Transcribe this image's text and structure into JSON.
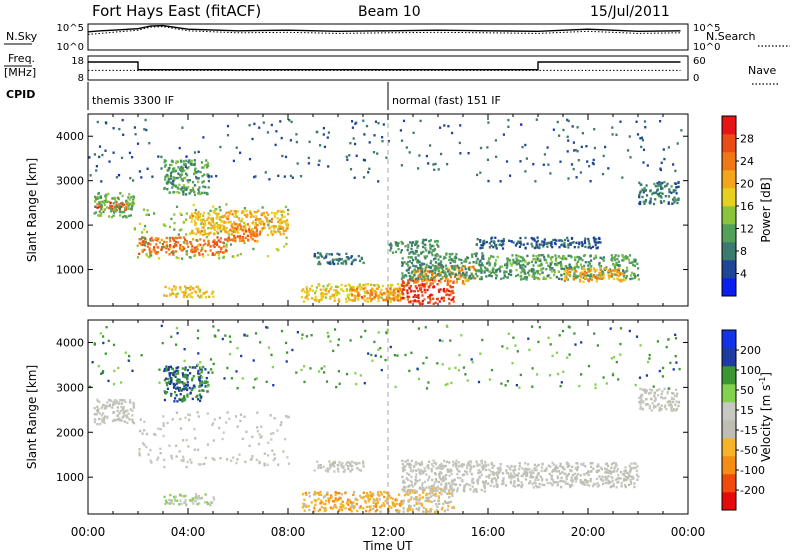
{
  "header": {
    "station": "Fort Hays East (fitACF)",
    "beam": "Beam 10",
    "date": "15/Jul/2011"
  },
  "strip_labels": {
    "nsky": "N.Sky",
    "nsearch": "N.Search",
    "freq_line1": "Freq.",
    "freq_line2": "[MHz]",
    "nave": "Nave",
    "cpid": "CPID",
    "nsky_ticks": [
      "10^5",
      "10^0"
    ],
    "nsearch_ticks": [
      "10^5",
      "10^0"
    ],
    "freq_ticks": [
      "18",
      "8"
    ],
    "nave_ticks": [
      "60",
      "0"
    ]
  },
  "cpid_segments": [
    {
      "start_hour": 0,
      "label": "themis 3300 IF"
    },
    {
      "start_hour": 12,
      "label": "normal (fast) 151 IF"
    }
  ],
  "colors": {
    "power_scale": [
      "#0a1ef0",
      "#1e4696",
      "#3c7a6e",
      "#52a05a",
      "#8ac33c",
      "#e6d21e",
      "#f5a519",
      "#f07814",
      "#eb4b14",
      "#e61414"
    ],
    "velocity_scale": [
      "#e60a0a",
      "#f04b0a",
      "#f58c14",
      "#f5b428",
      "#bebeb4",
      "#c8c8c3",
      "#82d250",
      "#3c9632",
      "#1e3ca0",
      "#1432e6"
    ]
  },
  "chart_data": [
    {
      "type": "line",
      "name": "strip-noise",
      "ylim": [
        0,
        5
      ],
      "x": [
        0,
        0.5,
        1,
        2,
        2.5,
        3,
        4,
        6,
        8,
        10,
        12,
        14,
        16,
        18,
        20,
        22,
        23.7
      ],
      "series": [
        {
          "name": "N.Sky",
          "values": [
            3.5,
            3.7,
            3.8,
            4.1,
            4.6,
            4.7,
            4.0,
            3.7,
            3.8,
            3.6,
            3.7,
            3.8,
            3.7,
            3.6,
            4.0,
            3.6,
            3.7
          ]
        },
        {
          "name": "N.Search",
          "values": [
            3.0,
            3.2,
            3.4,
            3.8,
            4.4,
            4.5,
            3.7,
            3.3,
            3.4,
            3.2,
            3.3,
            3.4,
            3.3,
            3.2,
            3.6,
            3.2,
            3.3
          ]
        }
      ]
    },
    {
      "type": "line",
      "name": "strip-freq",
      "ylim": [
        8,
        18
      ],
      "x": [
        0,
        2,
        2,
        18,
        18,
        23.7
      ],
      "series": [
        {
          "name": "Freq.",
          "values": [
            15.5,
            15.5,
            12.3,
            12.3,
            15.5,
            15.5
          ]
        },
        {
          "name": "Nave",
          "values": [
            12,
            12,
            12,
            12,
            12,
            12
          ]
        }
      ]
    },
    {
      "type": "heatmap",
      "name": "power-panel",
      "ylabel": "Slant Range [km]",
      "xlabel": "Time UT",
      "xlim": [
        0,
        24
      ],
      "ylim": [
        180,
        4500
      ],
      "yticks": [
        1000,
        2000,
        3000,
        4000
      ],
      "xticks": [
        "00:00",
        "04:00",
        "08:00",
        "12:00",
        "16:00",
        "20:00",
        "00:00"
      ],
      "colorbar": {
        "label": "Power [dB]",
        "min": 0,
        "max": 32,
        "ticks": [
          4,
          8,
          12,
          16,
          20,
          24,
          28
        ]
      },
      "regions": [
        {
          "t": [
            0.3,
            1.6
          ],
          "r": [
            2350,
            2550
          ],
          "v": 27
        },
        {
          "t": [
            0.2,
            1.8
          ],
          "r": [
            2200,
            2750
          ],
          "v": 12
        },
        {
          "t": [
            2.0,
            5.5
          ],
          "r": [
            1350,
            1750
          ],
          "v": 25
        },
        {
          "t": [
            1.8,
            8.0
          ],
          "r": [
            1250,
            2500
          ],
          "v": 14
        },
        {
          "t": [
            4.0,
            8.0
          ],
          "r": [
            1800,
            2350
          ],
          "v": 20
        },
        {
          "t": [
            3.0,
            4.8
          ],
          "r": [
            2700,
            3500
          ],
          "v": 11
        },
        {
          "t": [
            5.5,
            7.0
          ],
          "r": [
            1650,
            2050
          ],
          "v": 24
        },
        {
          "t": [
            3.0,
            5.0
          ],
          "r": [
            400,
            650
          ],
          "v": 18
        },
        {
          "t": [
            8.5,
            12.5
          ],
          "r": [
            300,
            700
          ],
          "v": 18
        },
        {
          "t": [
            10.5,
            12.5
          ],
          "r": [
            330,
            600
          ],
          "v": 23
        },
        {
          "t": [
            12.5,
            14.6
          ],
          "r": [
            250,
            800
          ],
          "v": 28
        },
        {
          "t": [
            13.0,
            15.5
          ],
          "r": [
            700,
            1100
          ],
          "v": 22
        },
        {
          "t": [
            12.5,
            16.0
          ],
          "r": [
            800,
            1400
          ],
          "v": 10
        },
        {
          "t": [
            16.0,
            22.0
          ],
          "r": [
            800,
            1350
          ],
          "v": 11
        },
        {
          "t": [
            19.0,
            21.5
          ],
          "r": [
            750,
            1050
          ],
          "v": 21
        },
        {
          "t": [
            15.5,
            20.5
          ],
          "r": [
            1500,
            1750
          ],
          "v": 6
        },
        {
          "t": [
            22.0,
            23.6
          ],
          "r": [
            2500,
            3000
          ],
          "v": 8
        },
        {
          "t": [
            9.0,
            11.0
          ],
          "r": [
            1150,
            1400
          ],
          "v": 8
        },
        {
          "t": [
            12.0,
            14.0
          ],
          "r": [
            1400,
            1700
          ],
          "v": 10
        },
        {
          "t": [
            0.0,
            23.7
          ],
          "r": [
            3000,
            4400
          ],
          "v": 6
        }
      ]
    },
    {
      "type": "heatmap",
      "name": "velocity-panel",
      "ylabel": "Slant Range [km]",
      "xlabel": "Time UT",
      "xlim": [
        0,
        24
      ],
      "ylim": [
        180,
        4500
      ],
      "yticks": [
        1000,
        2000,
        3000,
        4000
      ],
      "xticks": [
        "00:00",
        "04:00",
        "08:00",
        "12:00",
        "16:00",
        "20:00",
        "00:00"
      ],
      "colorbar": {
        "label": "Velocity [m s^-1]",
        "min": -250,
        "max": 250,
        "ticks": [
          -200,
          -100,
          -50,
          -15,
          15,
          50,
          100,
          200
        ]
      },
      "regions": [
        {
          "t": [
            0.2,
            1.8
          ],
          "r": [
            2200,
            2750
          ],
          "v": 0
        },
        {
          "t": [
            2.0,
            8.0
          ],
          "r": [
            1250,
            2500
          ],
          "v": 0
        },
        {
          "t": [
            3.0,
            4.8
          ],
          "r": [
            2700,
            3500
          ],
          "v": 150
        },
        {
          "t": [
            3.0,
            5.0
          ],
          "r": [
            400,
            650
          ],
          "v": 40
        },
        {
          "t": [
            8.5,
            12.5
          ],
          "r": [
            250,
            700
          ],
          "v": -80
        },
        {
          "t": [
            12.5,
            14.6
          ],
          "r": [
            250,
            800
          ],
          "v": -40
        },
        {
          "t": [
            12.5,
            16.0
          ],
          "r": [
            700,
            1400
          ],
          "v": 0
        },
        {
          "t": [
            16.0,
            22.0
          ],
          "r": [
            800,
            1350
          ],
          "v": 0
        },
        {
          "t": [
            22.0,
            23.6
          ],
          "r": [
            2500,
            3000
          ],
          "v": 0
        },
        {
          "t": [
            9.0,
            11.0
          ],
          "r": [
            1150,
            1400
          ],
          "v": 0
        },
        {
          "t": [
            0.0,
            23.7
          ],
          "r": [
            3000,
            4400
          ],
          "v": 120
        }
      ]
    }
  ]
}
